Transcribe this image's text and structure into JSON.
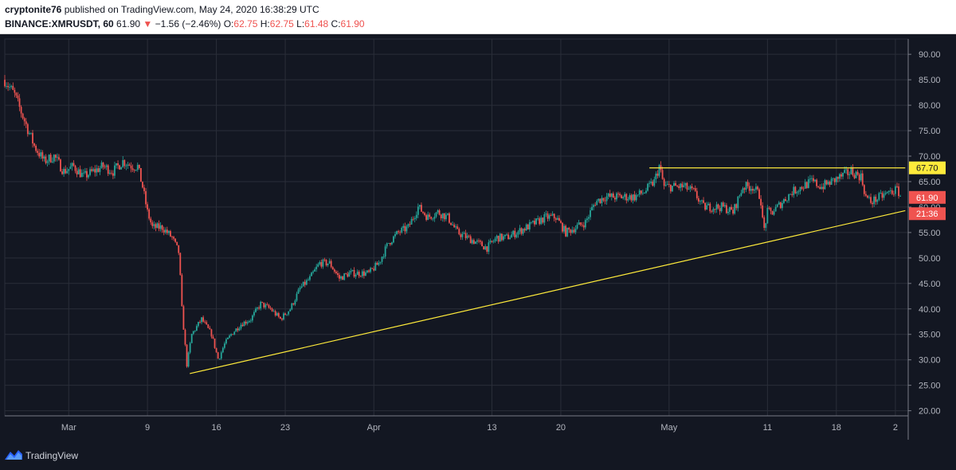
{
  "header": {
    "author": "cryptonite76",
    "published_text": "published on TradingView.com, May 24, 2020 16:38:29 UTC",
    "symbol": "BINANCE:XMRUSDT, 60",
    "last": "61.90",
    "change": "−1.56 (−2.46%)",
    "o_label": "O:",
    "o_val": "62.75",
    "h_label": "H:",
    "h_val": "62.75",
    "l_label": "L:",
    "l_val": "61.48",
    "c_label": "C:",
    "c_val": "61.90"
  },
  "footer": {
    "brand": "TradingView"
  },
  "colors": {
    "bg": "#131722",
    "grid": "#2a2e39",
    "up": "#26a69a",
    "down": "#ef5350",
    "trendline": "#ffeb3b",
    "axis_text": "#b2b5be"
  },
  "chart_data": {
    "type": "candlestick",
    "ylim": [
      19,
      93
    ],
    "y_ticks": [
      20,
      25,
      30,
      35,
      40,
      45,
      50,
      55,
      60,
      65,
      70,
      75,
      80,
      85,
      90
    ],
    "x_ticks": [
      {
        "label": "Mar",
        "day": 0
      },
      {
        "label": "9",
        "day": 8
      },
      {
        "label": "16",
        "day": 15
      },
      {
        "label": "23",
        "day": 22
      },
      {
        "label": "Apr",
        "day": 31
      },
      {
        "label": "13",
        "day": 43
      },
      {
        "label": "20",
        "day": 50
      },
      {
        "label": "May",
        "day": 61
      },
      {
        "label": "11",
        "day": 71
      },
      {
        "label": "18",
        "day": 78
      },
      {
        "label": "2",
        "day": 84
      }
    ],
    "x_range_days": [
      -6.5,
      85.3
    ],
    "price_path": [
      [
        -6.5,
        85
      ],
      [
        -5.5,
        82
      ],
      [
        -4.5,
        77
      ],
      [
        -3.5,
        72
      ],
      [
        -2.5,
        69
      ],
      [
        -1.5,
        70
      ],
      [
        -0.5,
        67
      ],
      [
        0.5,
        68
      ],
      [
        1.5,
        66
      ],
      [
        2.5,
        67
      ],
      [
        3.5,
        68
      ],
      [
        4.5,
        67
      ],
      [
        5.5,
        69
      ],
      [
        6.5,
        68
      ],
      [
        7,
        68
      ],
      [
        7.5,
        64
      ],
      [
        8,
        59
      ],
      [
        8.5,
        56
      ],
      [
        9.5,
        56
      ],
      [
        10.5,
        54
      ],
      [
        11.2,
        51
      ],
      [
        11.5,
        40
      ],
      [
        12,
        29
      ],
      [
        12.5,
        35
      ],
      [
        13.5,
        38
      ],
      [
        14.5,
        35
      ],
      [
        15.2,
        30
      ],
      [
        15.8,
        33
      ],
      [
        16.5,
        35
      ],
      [
        17.5,
        37
      ],
      [
        18.5,
        38
      ],
      [
        19.5,
        41
      ],
      [
        20.5,
        40
      ],
      [
        21.5,
        38
      ],
      [
        22.5,
        40
      ],
      [
        23.5,
        44
      ],
      [
        24.5,
        46
      ],
      [
        25.5,
        49
      ],
      [
        26.5,
        49
      ],
      [
        27.5,
        46
      ],
      [
        28.5,
        47
      ],
      [
        29.5,
        47
      ],
      [
        30.5,
        47
      ],
      [
        31.5,
        49
      ],
      [
        32.5,
        53
      ],
      [
        33.5,
        55
      ],
      [
        34.5,
        56
      ],
      [
        35.5,
        60
      ],
      [
        36.5,
        58
      ],
      [
        37.5,
        59
      ],
      [
        38.5,
        58
      ],
      [
        39.5,
        55
      ],
      [
        40.5,
        54
      ],
      [
        41.5,
        53
      ],
      [
        42.5,
        52
      ],
      [
        43.5,
        54
      ],
      [
        44.5,
        54
      ],
      [
        45.5,
        55
      ],
      [
        46.5,
        56
      ],
      [
        47.5,
        57
      ],
      [
        48.5,
        58
      ],
      [
        49.5,
        58
      ],
      [
        50.5,
        55
      ],
      [
        51.5,
        56
      ],
      [
        52.5,
        57
      ],
      [
        53.5,
        61
      ],
      [
        54.5,
        62
      ],
      [
        55.5,
        62
      ],
      [
        56.5,
        62
      ],
      [
        57.5,
        62
      ],
      [
        58.5,
        63
      ],
      [
        59.5,
        65
      ],
      [
        60,
        68
      ],
      [
        60.5,
        64
      ],
      [
        61.5,
        64
      ],
      [
        62.5,
        64
      ],
      [
        63.5,
        63
      ],
      [
        64.5,
        60
      ],
      [
        65.5,
        60
      ],
      [
        66.5,
        60
      ],
      [
        67.5,
        59
      ],
      [
        68.5,
        64
      ],
      [
        69.5,
        64
      ],
      [
        70.3,
        62
      ],
      [
        70.6,
        55
      ],
      [
        71,
        59
      ],
      [
        71.5,
        59
      ],
      [
        72.5,
        61
      ],
      [
        73.5,
        63
      ],
      [
        74.5,
        64
      ],
      [
        75.5,
        65
      ],
      [
        76.5,
        64
      ],
      [
        77.5,
        65
      ],
      [
        78.5,
        66
      ],
      [
        79.5,
        67
      ],
      [
        80.5,
        66
      ],
      [
        81,
        62
      ],
      [
        81.5,
        61
      ],
      [
        82.5,
        62
      ],
      [
        83.5,
        63
      ],
      [
        84.2,
        63.4
      ],
      [
        84.6,
        61.9
      ]
    ],
    "trendlines": [
      {
        "from": [
          12.3,
          27.3
        ],
        "to": [
          85,
          59.3
        ]
      },
      {
        "from": [
          59.0,
          67.7
        ],
        "to": [
          85,
          67.7
        ]
      }
    ],
    "price_labels": [
      {
        "text": "67.70",
        "value": 67.7,
        "style": "yellow"
      },
      {
        "text": "61.90",
        "value": 61.9,
        "style": "red"
      },
      {
        "text": "21:36",
        "value": 58.7,
        "style": "red"
      }
    ]
  }
}
